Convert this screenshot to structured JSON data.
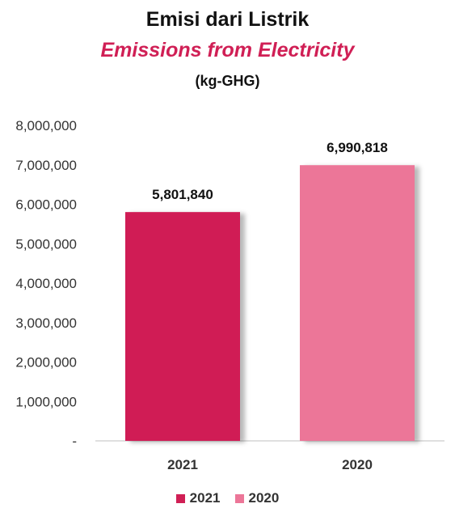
{
  "chart_data": {
    "type": "bar",
    "title": "Emisi dari Listrik",
    "subtitle": "Emissions from Electricity",
    "unit": "(kg-GHG)",
    "categories": [
      "2021",
      "2020"
    ],
    "values": [
      5801840,
      6990818
    ],
    "value_labels": [
      "5,801,840",
      "6,990,818"
    ],
    "ylim": [
      0,
      8000000
    ],
    "y_ticks": [
      0,
      1000000,
      2000000,
      3000000,
      4000000,
      5000000,
      6000000,
      7000000,
      8000000
    ],
    "y_tick_labels": [
      "-",
      "1,000,000",
      "2,000,000",
      "3,000,000",
      "4,000,000",
      "5,000,000",
      "6,000,000",
      "7,000,000",
      "8,000,000"
    ],
    "legend": [
      "2021",
      "2020"
    ],
    "legend_position": "bottom",
    "grid": false,
    "colors": [
      "#D01F55",
      "#EC7698"
    ],
    "subtitle_color": "#D01F55"
  }
}
